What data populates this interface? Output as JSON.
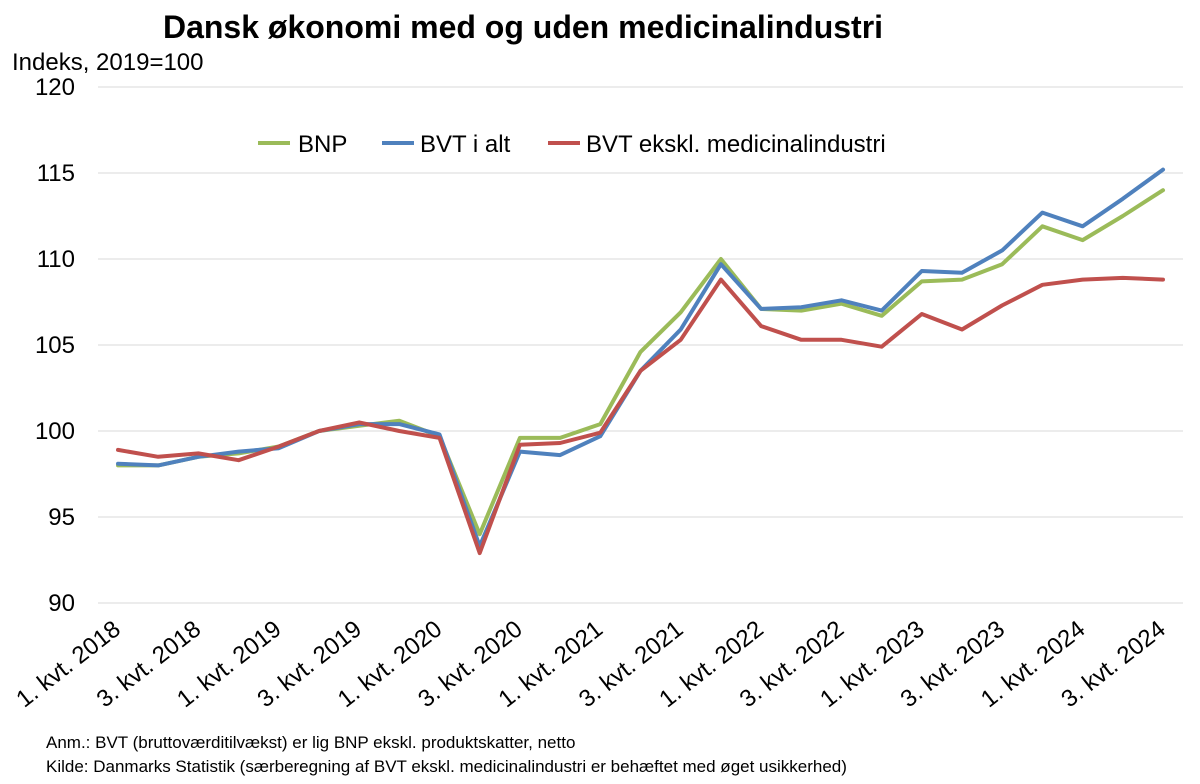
{
  "chart_data": {
    "type": "line",
    "title": "Dansk økonomi med og uden medicinalindustri",
    "ylabel": "Indeks, 2019=100",
    "ylim": [
      90,
      120
    ],
    "yticks": [
      "90",
      "95",
      "100",
      "105",
      "110",
      "115",
      "120"
    ],
    "ytick_values": [
      90,
      95,
      100,
      105,
      110,
      115,
      120
    ],
    "grid": true,
    "legend_position": "top",
    "x_tick_labels": [
      "1. kvt. 2018",
      "3. kvt. 2018",
      "1. kvt. 2019",
      "3. kvt. 2019",
      "1. kvt. 2020",
      "3. kvt. 2020",
      "1. kvt. 2021",
      "3. kvt. 2021",
      "1. kvt. 2022",
      "3. kvt. 2022",
      "1. kvt. 2023",
      "3. kvt. 2023",
      "1. kvt. 2024",
      "3. kvt. 2024"
    ],
    "x_count": 27,
    "series": [
      {
        "name": "BNP",
        "color": "#9bbb59",
        "values": [
          98.0,
          98.0,
          98.5,
          98.7,
          99.1,
          100.0,
          100.3,
          100.6,
          99.7,
          94.0,
          99.6,
          99.6,
          100.4,
          104.6,
          106.9,
          110.0,
          107.1,
          107.0,
          107.4,
          106.7,
          108.7,
          108.8,
          109.7,
          111.9,
          111.1,
          112.5,
          114.0
        ]
      },
      {
        "name": "BVT i alt",
        "color": "#4f81bd",
        "values": [
          98.1,
          98.0,
          98.5,
          98.8,
          99.0,
          100.0,
          100.4,
          100.4,
          99.8,
          93.3,
          98.8,
          98.6,
          99.7,
          103.5,
          105.9,
          109.7,
          107.1,
          107.2,
          107.6,
          107.0,
          109.3,
          109.2,
          110.5,
          112.7,
          111.9,
          113.5,
          115.2
        ]
      },
      {
        "name": "BVT ekskl. medicinalindustri",
        "color": "#c0504d",
        "values": [
          98.9,
          98.5,
          98.7,
          98.3,
          99.1,
          100.0,
          100.5,
          100.0,
          99.6,
          92.9,
          99.2,
          99.3,
          99.9,
          103.5,
          105.3,
          108.8,
          106.1,
          105.3,
          105.3,
          104.9,
          106.8,
          105.9,
          107.3,
          108.5,
          108.8,
          108.9,
          108.8
        ]
      }
    ]
  },
  "notes": {
    "anm": "Anm.: BVT (bruttoværditilvækst) er lig BNP ekskl. produktskatter, netto",
    "kilde": "Kilde: Danmarks Statistik (særberegning af BVT ekskl. medicinalindustri er behæftet med øget usikkerhed)"
  }
}
